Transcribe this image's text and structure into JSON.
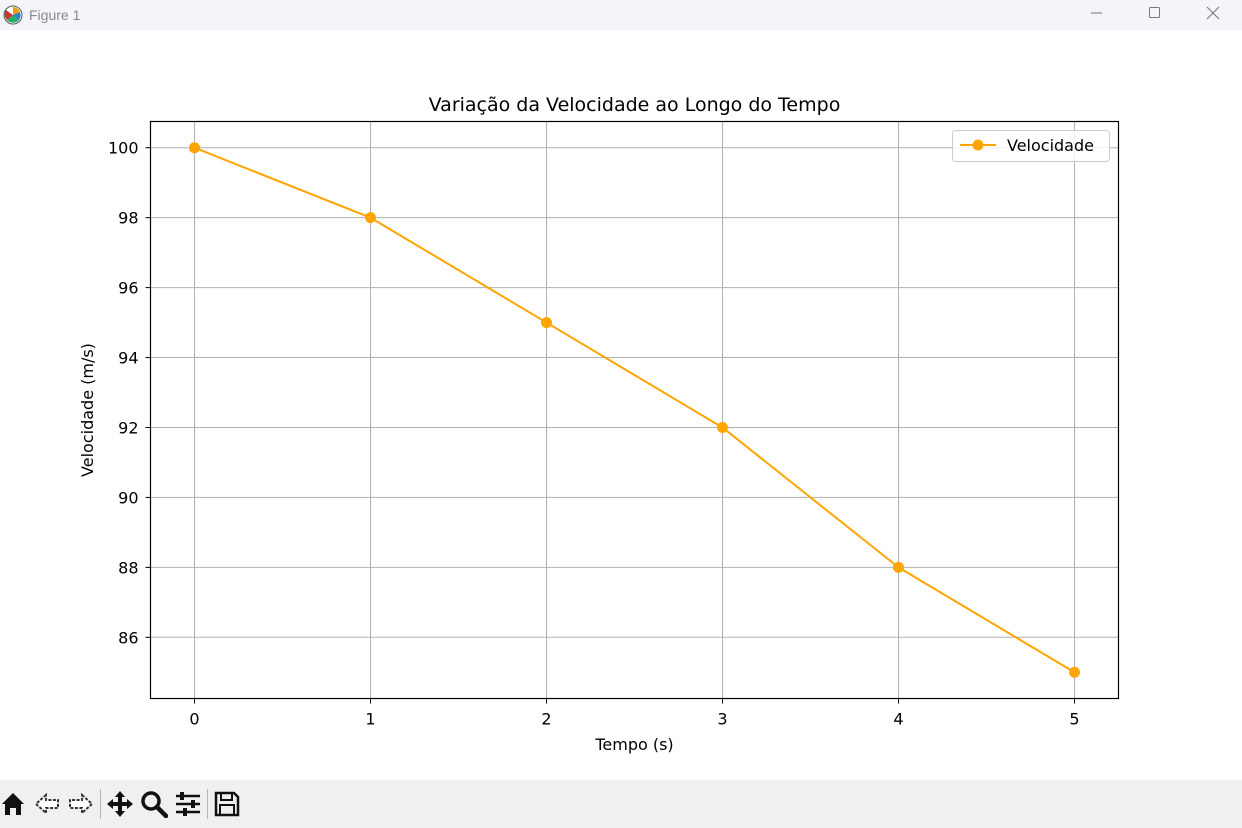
{
  "window": {
    "title": "Figure 1",
    "icon": "matplotlib-icon",
    "controls": [
      "minimize-icon",
      "maximize-icon",
      "close-icon"
    ]
  },
  "toolbar": {
    "buttons": [
      {
        "name": "home-button",
        "icon": "home-icon"
      },
      {
        "name": "back-button",
        "icon": "back-arrow-icon"
      },
      {
        "name": "forward-button",
        "icon": "forward-arrow-icon"
      },
      {
        "name": "pan-button",
        "icon": "move-icon"
      },
      {
        "name": "zoom-button",
        "icon": "zoom-icon"
      },
      {
        "name": "configure-subplots-button",
        "icon": "sliders-icon"
      },
      {
        "name": "save-button",
        "icon": "save-icon"
      }
    ]
  },
  "chart_data": {
    "type": "line",
    "title": "Variação da Velocidade ao Longo do Tempo",
    "xlabel": "Tempo (s)",
    "ylabel": "Velocidade (m/s)",
    "x": [
      0,
      1,
      2,
      3,
      4,
      5
    ],
    "series": [
      {
        "name": "Velocidade",
        "color": "#ffa500",
        "marker": "circle",
        "values": [
          100,
          98,
          95,
          92,
          88,
          85
        ]
      }
    ],
    "xticks": [
      "0",
      "1",
      "2",
      "3",
      "4",
      "5"
    ],
    "yticks": [
      "86",
      "88",
      "90",
      "92",
      "94",
      "96",
      "98",
      "100"
    ],
    "xlim": [
      -0.25,
      5.25
    ],
    "ylim": [
      84.25,
      100.75
    ],
    "grid": true,
    "legend_position": "upper-right"
  }
}
